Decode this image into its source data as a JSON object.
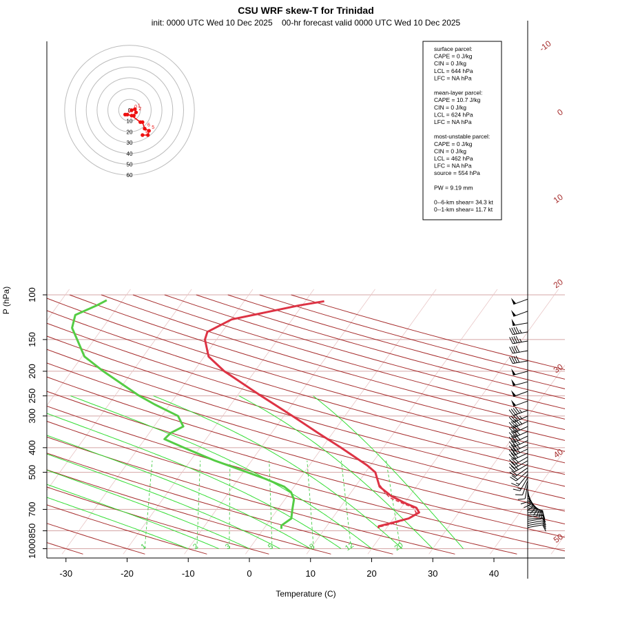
{
  "header": {
    "title": "CSU WRF skew-T for Trinidad",
    "subtitle": "init: 0000 UTC Wed 10 Dec 2025    00-hr forecast valid 0000 UTC Wed 10 Dec 2025"
  },
  "axes": {
    "xlabel": "Temperature (C)",
    "ylabel": "P (hPa)"
  },
  "stats": {
    "lines": [
      "surface parcel:",
      "CAPE = 0 J/kg",
      "CIN = 0 J/kg",
      "LCL = 644 hPa",
      "LFC = NA hPa",
      "",
      "mean-layer parcel:",
      "CAPE = 10.7 J/kg",
      "CIN = 0 J/kg",
      "LCL = 624 hPa",
      "LFC = NA hPa",
      "",
      "most-unstable parcel:",
      "CAPE = 0 J/kg",
      "CIN = 0 J/kg",
      "LCL = 462 hPa",
      "LFC = NA hPa",
      "source = 554 hPa",
      "",
      "PW =  9.19 mm",
      "",
      "0--6-km shear= 34.3 kt",
      "0--1-km shear= 11.7 kt"
    ]
  },
  "colors": {
    "temperature": "#dd3344",
    "dewpoint": "#55cc44",
    "dry_adiabat": "#a52a2a",
    "moist_adiabat": "#33dd33",
    "mixing_ratio": "#44cc44",
    "isobar": "#d4a5a5",
    "isotherm": "#e8c4c4",
    "hodograph": "#ee1111",
    "isotherm_label": "#a52a2a"
  },
  "chart_data": {
    "type": "skew-T log-P",
    "title": "CSU WRF skew-T for Trinidad",
    "xlabel": "Temperature (C)",
    "ylabel": "P (hPa)",
    "x_ticks": [
      -30,
      -20,
      -10,
      0,
      10,
      20,
      30,
      40
    ],
    "pressure_ticks": [
      100,
      150,
      200,
      250,
      300,
      400,
      500,
      700,
      850,
      1000
    ],
    "isotherm_labels": [
      -10,
      0,
      10,
      20,
      30,
      40,
      50
    ],
    "mixing_ratio_labels": [
      "1",
      "2",
      "3",
      "5",
      "8",
      "12",
      "20"
    ],
    "temperature_profile": [
      {
        "p": 830,
        "t": 18.7
      },
      {
        "p": 815,
        "t": 18.5
      },
      {
        "p": 795,
        "t": 20.0
      },
      {
        "p": 760,
        "t": 22.5
      },
      {
        "p": 720,
        "t": 23.5
      },
      {
        "p": 690,
        "t": 22.5
      },
      {
        "p": 660,
        "t": 20.0
      },
      {
        "p": 620,
        "t": 17.0
      },
      {
        "p": 570,
        "t": 14.0
      },
      {
        "p": 500,
        "t": 11.6
      },
      {
        "p": 470,
        "t": 9.5
      },
      {
        "p": 400,
        "t": 3.1
      },
      {
        "p": 350,
        "t": -2.4
      },
      {
        "p": 300,
        "t": -8.6
      },
      {
        "p": 250,
        "t": -16.1
      },
      {
        "p": 200,
        "t": -25.0
      },
      {
        "p": 175,
        "t": -29.3
      },
      {
        "p": 150,
        "t": -31.9
      },
      {
        "p": 140,
        "t": -32.4
      },
      {
        "p": 125,
        "t": -29.9
      },
      {
        "p": 110,
        "t": -20.5
      },
      {
        "p": 106,
        "t": -16.9
      }
    ],
    "dewpoint_profile": [
      {
        "p": 835,
        "t": 2.9
      },
      {
        "p": 810,
        "t": 2.5
      },
      {
        "p": 760,
        "t": 3.3
      },
      {
        "p": 700,
        "t": 2.4
      },
      {
        "p": 640,
        "t": 1.5
      },
      {
        "p": 600,
        "t": 0.2
      },
      {
        "p": 570,
        "t": -1.6
      },
      {
        "p": 530,
        "t": -5.7
      },
      {
        "p": 500,
        "t": -9.3
      },
      {
        "p": 450,
        "t": -16.0
      },
      {
        "p": 400,
        "t": -22.6
      },
      {
        "p": 370,
        "t": -26.8
      },
      {
        "p": 350,
        "t": -26.5
      },
      {
        "p": 330,
        "t": -25.2
      },
      {
        "p": 300,
        "t": -27.3
      },
      {
        "p": 270,
        "t": -32.5
      },
      {
        "p": 250,
        "t": -36.0
      },
      {
        "p": 200,
        "t": -44.8
      },
      {
        "p": 175,
        "t": -49.6
      },
      {
        "p": 150,
        "t": -52.8
      },
      {
        "p": 135,
        "t": -55.0
      },
      {
        "p": 120,
        "t": -56.0
      },
      {
        "p": 110,
        "t": -53.6
      },
      {
        "p": 105,
        "t": -52.6
      }
    ],
    "parcel_profile": [
      {
        "p": 820,
        "t": 18.8
      },
      {
        "p": 800,
        "t": 20.3
      },
      {
        "p": 760,
        "t": 22.6
      },
      {
        "p": 720,
        "t": 23.0
      },
      {
        "p": 690,
        "t": 22.0
      },
      {
        "p": 660,
        "t": 19.5
      },
      {
        "p": 630,
        "t": 17.0
      },
      {
        "p": 600,
        "t": 15.5
      },
      {
        "p": 560,
        "t": 13.8
      }
    ],
    "wind_barbs": [
      {
        "p": 104,
        "dir": 250,
        "spd": 50
      },
      {
        "p": 116,
        "dir": 250,
        "spd": 50
      },
      {
        "p": 129,
        "dir": 260,
        "spd": 50
      },
      {
        "p": 140,
        "dir": 260,
        "spd": 45
      },
      {
        "p": 152,
        "dir": 260,
        "spd": 45
      },
      {
        "p": 166,
        "dir": 260,
        "spd": 40
      },
      {
        "p": 182,
        "dir": 260,
        "spd": 40
      },
      {
        "p": 200,
        "dir": 255,
        "spd": 50
      },
      {
        "p": 220,
        "dir": 255,
        "spd": 50
      },
      {
        "p": 240,
        "dir": 250,
        "spd": 50
      },
      {
        "p": 262,
        "dir": 250,
        "spd": 50
      },
      {
        "p": 285,
        "dir": 250,
        "spd": 45
      },
      {
        "p": 300,
        "dir": 245,
        "spd": 45
      },
      {
        "p": 315,
        "dir": 245,
        "spd": 45
      },
      {
        "p": 330,
        "dir": 245,
        "spd": 40
      },
      {
        "p": 345,
        "dir": 245,
        "spd": 40
      },
      {
        "p": 360,
        "dir": 245,
        "spd": 40
      },
      {
        "p": 375,
        "dir": 245,
        "spd": 35
      },
      {
        "p": 390,
        "dir": 245,
        "spd": 35
      },
      {
        "p": 405,
        "dir": 245,
        "spd": 35
      },
      {
        "p": 420,
        "dir": 245,
        "spd": 30
      },
      {
        "p": 435,
        "dir": 240,
        "spd": 30
      },
      {
        "p": 450,
        "dir": 240,
        "spd": 25
      },
      {
        "p": 465,
        "dir": 240,
        "spd": 25
      },
      {
        "p": 480,
        "dir": 235,
        "spd": 20
      },
      {
        "p": 495,
        "dir": 230,
        "spd": 20
      },
      {
        "p": 510,
        "dir": 220,
        "spd": 15
      },
      {
        "p": 525,
        "dir": 210,
        "spd": 15
      },
      {
        "p": 540,
        "dir": 200,
        "spd": 10
      },
      {
        "p": 555,
        "dir": 190,
        "spd": 10
      },
      {
        "p": 570,
        "dir": 180,
        "spd": 10
      },
      {
        "p": 585,
        "dir": 170,
        "spd": 10
      },
      {
        "p": 600,
        "dir": 160,
        "spd": 10
      },
      {
        "p": 615,
        "dir": 150,
        "spd": 10
      },
      {
        "p": 630,
        "dir": 140,
        "spd": 10
      },
      {
        "p": 645,
        "dir": 130,
        "spd": 10
      },
      {
        "p": 660,
        "dir": 120,
        "spd": 10
      },
      {
        "p": 675,
        "dir": 110,
        "spd": 10
      },
      {
        "p": 690,
        "dir": 100,
        "spd": 10
      },
      {
        "p": 705,
        "dir": 95,
        "spd": 10
      },
      {
        "p": 720,
        "dir": 90,
        "spd": 10
      },
      {
        "p": 735,
        "dir": 90,
        "spd": 10
      },
      {
        "p": 750,
        "dir": 85,
        "spd": 10
      },
      {
        "p": 765,
        "dir": 85,
        "spd": 10
      },
      {
        "p": 780,
        "dir": 80,
        "spd": 10
      },
      {
        "p": 795,
        "dir": 80,
        "spd": 10
      },
      {
        "p": 810,
        "dir": 80,
        "spd": 10
      },
      {
        "p": 825,
        "dir": 80,
        "spd": 10
      }
    ],
    "hodograph": {
      "ring_labels": [
        "0",
        "10",
        "20",
        "30",
        "40",
        "50",
        "60"
      ],
      "point_labels": [
        "0",
        "1",
        "2",
        "3",
        "4",
        "5",
        "6",
        "9"
      ],
      "points": [
        {
          "u": 2,
          "v": 0
        },
        {
          "u": 5,
          "v": 1
        },
        {
          "u": 6,
          "v": -2
        },
        {
          "u": 4,
          "v": -5
        },
        {
          "u": -4,
          "v": -4
        },
        {
          "u": -2,
          "v": -4
        },
        {
          "u": 2,
          "v": -5
        },
        {
          "u": 10,
          "v": -11
        },
        {
          "u": 12,
          "v": -11
        },
        {
          "u": 14,
          "v": -17
        },
        {
          "u": 18,
          "v": -19
        },
        {
          "u": 17,
          "v": -23
        },
        {
          "u": 12,
          "v": -23
        }
      ]
    }
  }
}
